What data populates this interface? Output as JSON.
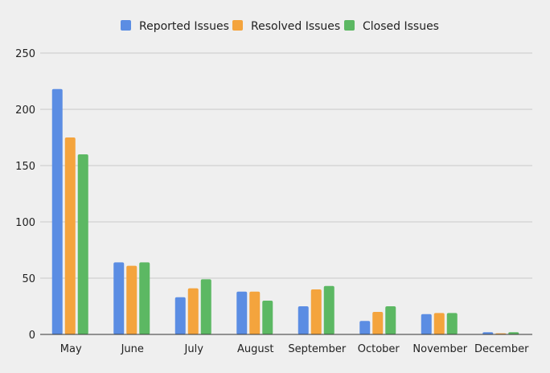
{
  "chart_data": {
    "type": "bar",
    "title": "",
    "xlabel": "",
    "ylabel": "",
    "categories": [
      "May",
      "June",
      "July",
      "August",
      "September",
      "October",
      "November",
      "December"
    ],
    "series": [
      {
        "name": "Reported Issues",
        "color": "#5b8de3",
        "values": [
          218,
          64,
          33,
          38,
          25,
          12,
          18,
          2
        ]
      },
      {
        "name": "Resolved Issues",
        "color": "#f4a43d",
        "values": [
          175,
          61,
          41,
          38,
          40,
          20,
          19,
          1
        ]
      },
      {
        "name": "Closed Issues",
        "color": "#5cb863",
        "values": [
          160,
          64,
          49,
          30,
          43,
          25,
          19,
          2
        ]
      }
    ],
    "ylim": [
      0,
      250
    ],
    "yticks": [
      0,
      50,
      100,
      150,
      200,
      250
    ],
    "grid": true,
    "legend_position": "top-center"
  }
}
